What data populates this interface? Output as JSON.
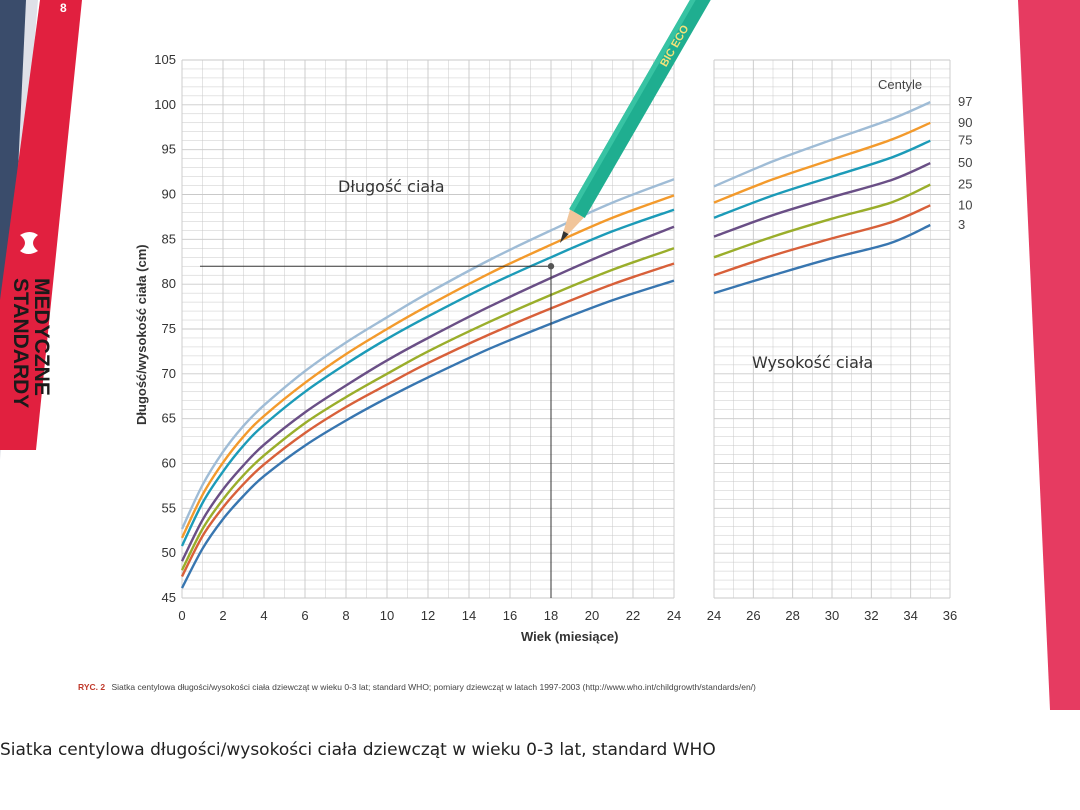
{
  "brand": {
    "line1": "STANDARDY",
    "line2": "MEDYCZNE",
    "page_mark": "8"
  },
  "pencil": {
    "text": "BIC ECO"
  },
  "figure_note": {
    "prefix": "RYC. 2",
    "text": "Siatka centylowa długości/wysokości ciała dziewcząt w wieku 0-3 lat; standard WHO; pomiary dziewcząt w latach 1997-2003 (http://www.who.int/childgrowth/standards/en/)"
  },
  "caption": "Siatka centylowa długości/wysokości ciała dziewcząt w wieku 0-3 lat, standard WHO",
  "colors": {
    "p97": "#9fbcd6",
    "p90": "#f39a2c",
    "p75": "#1c9bb8",
    "p50": "#6a4f86",
    "p25": "#9aae2b",
    "p10": "#d8603a",
    "p3": "#3876b0",
    "red_band": "#e1203f",
    "ink": "#333333"
  },
  "chart_data": {
    "type": "line",
    "title": "",
    "xlabel": "Wiek (miesiące)",
    "ylabel": "Długość/wysokość ciała (cm)",
    "ylim": [
      45,
      105
    ],
    "y_ticks": [
      45,
      50,
      55,
      60,
      65,
      70,
      75,
      80,
      85,
      90,
      95,
      100,
      105
    ],
    "panel_left": {
      "label": "Długość ciała",
      "xlim": [
        0,
        24
      ],
      "x_ticks": [
        0,
        2,
        4,
        6,
        8,
        10,
        12,
        14,
        16,
        18,
        20,
        22,
        24
      ]
    },
    "panel_right": {
      "label": "Wysokość ciała",
      "xlim": [
        24,
        36
      ],
      "x_ticks": [
        24,
        26,
        28,
        30,
        32,
        34,
        36
      ]
    },
    "legend_title": "Centyle",
    "legend_position": "right",
    "grid": true,
    "marked_point": {
      "x": 18,
      "y": 82
    },
    "length_x": [
      0,
      1,
      2,
      3,
      4,
      6,
      8,
      10,
      12,
      15,
      18,
      21,
      24
    ],
    "height_x": [
      24,
      27,
      30,
      33,
      35
    ],
    "series": [
      {
        "name": "97",
        "color": "#9fbcd6",
        "length_values": [
          52.7,
          57.6,
          61.3,
          64.2,
          66.5,
          70.3,
          73.5,
          76.3,
          79.0,
          82.7,
          86.0,
          89.1,
          91.7
        ],
        "height_values": [
          90.9,
          93.7,
          96.1,
          98.4,
          100.3
        ]
      },
      {
        "name": "90",
        "color": "#f39a2c",
        "length_values": [
          51.7,
          56.5,
          60.1,
          63.0,
          65.3,
          69.0,
          72.2,
          75.0,
          77.6,
          81.2,
          84.4,
          87.4,
          89.9
        ],
        "height_values": [
          89.1,
          91.7,
          93.9,
          96.1,
          98.0
        ]
      },
      {
        "name": "75",
        "color": "#1c9bb8",
        "length_values": [
          50.8,
          55.6,
          59.1,
          62.0,
          64.3,
          68.0,
          71.1,
          73.9,
          76.4,
          79.9,
          83.0,
          85.9,
          88.3
        ],
        "height_values": [
          87.4,
          89.9,
          92.0,
          94.1,
          96.0
        ]
      },
      {
        "name": "50",
        "color": "#6a4f86",
        "length_values": [
          49.1,
          53.7,
          57.1,
          59.8,
          62.1,
          65.7,
          68.7,
          71.5,
          74.0,
          77.5,
          80.7,
          83.7,
          86.4
        ],
        "height_values": [
          85.3,
          87.7,
          89.7,
          91.6,
          93.5
        ]
      },
      {
        "name": "25",
        "color": "#9aae2b",
        "length_values": [
          48.1,
          52.7,
          56.0,
          58.7,
          60.9,
          64.5,
          67.4,
          70.0,
          72.5,
          75.8,
          78.8,
          81.6,
          84.0
        ],
        "height_values": [
          83.0,
          85.3,
          87.3,
          89.1,
          91.1
        ]
      },
      {
        "name": "10",
        "color": "#d8603a",
        "length_values": [
          47.4,
          51.9,
          55.1,
          57.7,
          59.9,
          63.4,
          66.3,
          68.8,
          71.2,
          74.4,
          77.3,
          80.0,
          82.3
        ],
        "height_values": [
          81.0,
          83.2,
          85.1,
          86.9,
          88.8
        ]
      },
      {
        "name": "3",
        "color": "#3876b0",
        "length_values": [
          46.1,
          50.5,
          53.8,
          56.4,
          58.6,
          62.0,
          64.8,
          67.3,
          69.6,
          72.8,
          75.6,
          78.2,
          80.4
        ],
        "height_values": [
          79.0,
          81.0,
          82.9,
          84.6,
          86.6
        ]
      }
    ]
  }
}
